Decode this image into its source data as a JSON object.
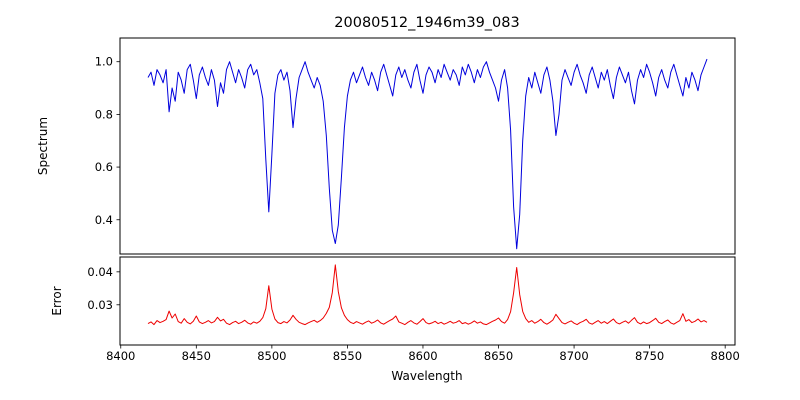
{
  "title": "20080512_1946m39_083",
  "chart_data": [
    {
      "type": "line",
      "name": "spectrum",
      "title": "20080512_1946m39_083",
      "ylabel": "Spectrum",
      "xlabel": "",
      "xlim": [
        8399.5,
        8806.5
      ],
      "ylim": [
        0.27,
        1.09
      ],
      "x_start": 8418,
      "x_step": 2,
      "yticks": [
        0.4,
        0.6,
        0.8,
        1.0
      ],
      "ytick_labels": [
        "0.4",
        "0.6",
        "0.8",
        "1.0"
      ],
      "xticks": [],
      "xtick_labels": [],
      "grid": false,
      "legend": "none",
      "annotations": [
        "deep absorption lines near 8498, 8542, 8662"
      ],
      "series": [
        {
          "name": "spectrum",
          "color": "#0000dd",
          "y": [
            0.94,
            0.96,
            0.91,
            0.97,
            0.95,
            0.92,
            0.97,
            0.81,
            0.9,
            0.85,
            0.96,
            0.93,
            0.88,
            0.97,
            0.99,
            0.93,
            0.86,
            0.95,
            0.98,
            0.94,
            0.91,
            0.97,
            0.93,
            0.83,
            0.92,
            0.88,
            0.97,
            1.0,
            0.96,
            0.92,
            0.97,
            0.94,
            0.9,
            0.97,
            0.99,
            0.95,
            0.97,
            0.92,
            0.86,
            0.63,
            0.43,
            0.65,
            0.88,
            0.95,
            0.97,
            0.93,
            0.96,
            0.89,
            0.75,
            0.86,
            0.94,
            0.97,
            1.0,
            0.96,
            0.93,
            0.9,
            0.94,
            0.91,
            0.85,
            0.72,
            0.52,
            0.36,
            0.31,
            0.38,
            0.56,
            0.75,
            0.87,
            0.93,
            0.96,
            0.92,
            0.95,
            0.98,
            0.94,
            0.91,
            0.96,
            0.93,
            0.89,
            0.96,
            0.99,
            0.95,
            0.91,
            0.87,
            0.95,
            0.98,
            0.94,
            0.97,
            0.93,
            0.9,
            0.96,
            0.99,
            0.93,
            0.88,
            0.95,
            0.98,
            0.96,
            0.92,
            0.97,
            0.94,
            0.99,
            0.96,
            0.93,
            0.97,
            0.95,
            0.91,
            0.98,
            0.95,
            0.99,
            0.96,
            0.92,
            0.97,
            0.94,
            0.98,
            1.0,
            0.96,
            0.93,
            0.9,
            0.85,
            0.93,
            0.97,
            0.9,
            0.74,
            0.45,
            0.29,
            0.42,
            0.7,
            0.87,
            0.94,
            0.9,
            0.96,
            0.92,
            0.88,
            0.95,
            0.98,
            0.93,
            0.85,
            0.72,
            0.8,
            0.93,
            0.97,
            0.94,
            0.91,
            0.96,
            0.99,
            0.95,
            0.92,
            0.88,
            0.95,
            0.98,
            0.94,
            0.9,
            0.96,
            0.93,
            0.97,
            0.91,
            0.86,
            0.94,
            0.98,
            0.95,
            0.92,
            0.96,
            0.89,
            0.84,
            0.93,
            0.97,
            0.94,
            0.99,
            0.96,
            0.92,
            0.87,
            0.94,
            0.97,
            0.93,
            0.9,
            0.96,
            0.99,
            0.95,
            0.91,
            0.87,
            0.94,
            0.9,
            0.96,
            0.93,
            0.89,
            0.95,
            0.98,
            1.01
          ]
        }
      ]
    },
    {
      "type": "line",
      "name": "error",
      "title": "",
      "ylabel": "Error",
      "xlabel": "Wavelength",
      "xlim": [
        8399.5,
        8806.5
      ],
      "ylim": [
        0.0178,
        0.0445
      ],
      "x_start": 8418,
      "x_step": 2,
      "yticks": [
        0.03,
        0.04
      ],
      "ytick_labels": [
        "0.03",
        "0.04"
      ],
      "xticks": [
        8400,
        8450,
        8500,
        8550,
        8600,
        8650,
        8700,
        8750,
        8800
      ],
      "xtick_labels": [
        "8400",
        "8450",
        "8500",
        "8550",
        "8600",
        "8650",
        "8700",
        "8750",
        "8800"
      ],
      "grid": false,
      "legend": "none",
      "annotations": [
        "error peaks near 8498 (~0.036), 8542 (~0.042), 8662 (~0.041), baseline ~0.0245"
      ],
      "series": [
        {
          "name": "error",
          "color": "#ee0000",
          "y": [
            0.0243,
            0.0248,
            0.024,
            0.0252,
            0.0246,
            0.025,
            0.0255,
            0.0281,
            0.026,
            0.0272,
            0.0249,
            0.0244,
            0.0258,
            0.0247,
            0.0242,
            0.025,
            0.0266,
            0.0248,
            0.0243,
            0.0247,
            0.0252,
            0.0245,
            0.0249,
            0.0262,
            0.0251,
            0.0256,
            0.0244,
            0.024,
            0.0246,
            0.025,
            0.0243,
            0.0247,
            0.0253,
            0.0245,
            0.0241,
            0.0248,
            0.0244,
            0.025,
            0.0261,
            0.0288,
            0.0358,
            0.0287,
            0.0257,
            0.0246,
            0.0243,
            0.0249,
            0.0245,
            0.0254,
            0.0268,
            0.0256,
            0.0247,
            0.0243,
            0.024,
            0.0245,
            0.0249,
            0.0253,
            0.0247,
            0.0252,
            0.026,
            0.0274,
            0.0292,
            0.0337,
            0.0421,
            0.034,
            0.0291,
            0.0268,
            0.0255,
            0.0247,
            0.0243,
            0.0249,
            0.0245,
            0.0241,
            0.0247,
            0.0251,
            0.0244,
            0.0248,
            0.0254,
            0.0245,
            0.0241,
            0.0247,
            0.0252,
            0.0257,
            0.0266,
            0.0248,
            0.0244,
            0.024,
            0.0247,
            0.0252,
            0.0245,
            0.0241,
            0.0249,
            0.0258,
            0.0246,
            0.0242,
            0.0245,
            0.025,
            0.0243,
            0.0247,
            0.0241,
            0.0245,
            0.025,
            0.0244,
            0.0247,
            0.0252,
            0.0243,
            0.0246,
            0.0241,
            0.0245,
            0.0251,
            0.0244,
            0.0248,
            0.0242,
            0.024,
            0.0245,
            0.025,
            0.0254,
            0.026,
            0.0249,
            0.0244,
            0.0255,
            0.0279,
            0.0336,
            0.0413,
            0.0331,
            0.028,
            0.0258,
            0.0247,
            0.0252,
            0.0244,
            0.0249,
            0.0256,
            0.0246,
            0.0241,
            0.0247,
            0.0254,
            0.0271,
            0.0258,
            0.0246,
            0.0242,
            0.0247,
            0.0251,
            0.0244,
            0.024,
            0.0246,
            0.025,
            0.0256,
            0.0245,
            0.0241,
            0.0247,
            0.0252,
            0.0244,
            0.0249,
            0.0243,
            0.025,
            0.0257,
            0.0246,
            0.0242,
            0.0247,
            0.0251,
            0.0244,
            0.0253,
            0.0261,
            0.0247,
            0.0242,
            0.0248,
            0.0243,
            0.0246,
            0.0252,
            0.0259,
            0.0247,
            0.0243,
            0.0249,
            0.0254,
            0.0245,
            0.0241,
            0.0247,
            0.0252,
            0.0273,
            0.025,
            0.0255,
            0.0246,
            0.025,
            0.0257,
            0.0248,
            0.0252,
            0.0247
          ]
        }
      ]
    }
  ]
}
